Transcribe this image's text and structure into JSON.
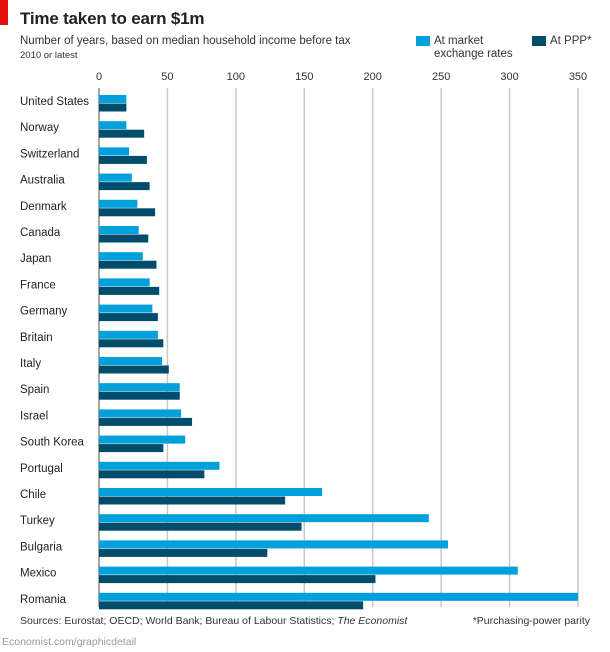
{
  "chart_data": {
    "type": "bar",
    "orientation": "horizontal",
    "title": "Time taken to earn $1m",
    "subtitle": "Number of years, based on median household income before tax",
    "note": "2010 or latest",
    "xlim": [
      0,
      350
    ],
    "xticks": [
      "0",
      "50",
      "100",
      "150",
      "200",
      "250",
      "300",
      "350"
    ],
    "grid": true,
    "legend_position": "top-right",
    "categories": [
      "United States",
      "Norway",
      "Switzerland",
      "Australia",
      "Denmark",
      "Canada",
      "Japan",
      "France",
      "Germany",
      "Britain",
      "Italy",
      "Spain",
      "Israel",
      "South Korea",
      "Portugal",
      "Chile",
      "Turkey",
      "Bulgaria",
      "Mexico",
      "Romania"
    ],
    "series": [
      {
        "name": "At market exchange rates",
        "color": "#00a0dc",
        "values": [
          20,
          20,
          22,
          24,
          28,
          29,
          32,
          37,
          39,
          43,
          46,
          59,
          60,
          63,
          88,
          163,
          241,
          255,
          306,
          350
        ]
      },
      {
        "name": "At PPP*",
        "color": "#004d6b",
        "values": [
          20,
          33,
          35,
          37,
          41,
          36,
          42,
          44,
          43,
          47,
          51,
          59,
          68,
          47,
          77,
          136,
          148,
          123,
          202,
          193
        ]
      }
    ]
  },
  "footer": {
    "sources_prefix": "Sources: Eurostat; OECD; World Bank; Bureau of Labour Statistics; ",
    "sources_italic": "The Economist",
    "footnote": "*Purchasing-power parity",
    "url": "Economist.com/graphicdetail"
  },
  "colors": {
    "accent": "#e3120b",
    "grid": "#c8c8c8"
  }
}
